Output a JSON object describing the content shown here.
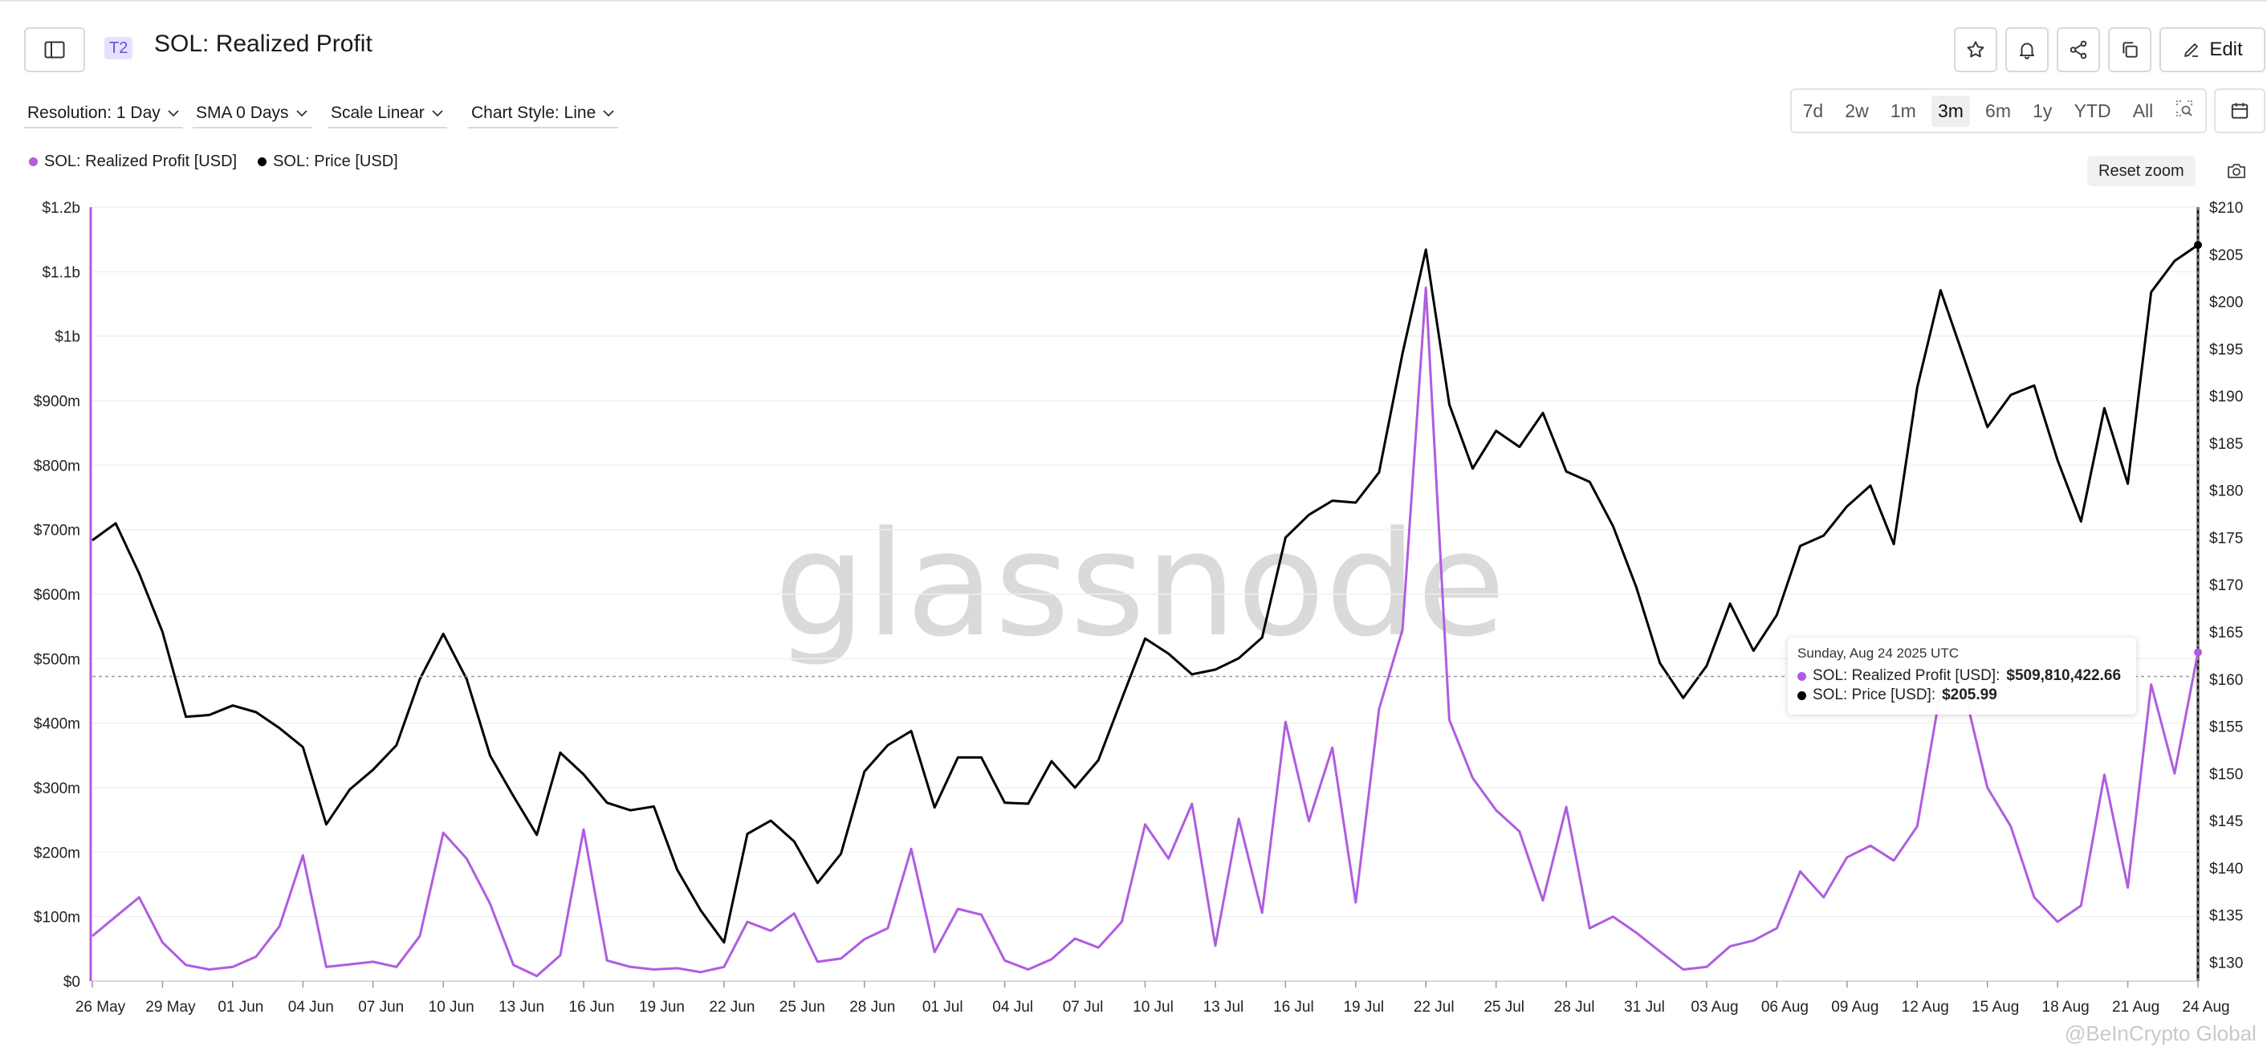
{
  "header": {
    "tier_badge": "T2",
    "title": "SOL: Realized Profit",
    "edit_label": "Edit"
  },
  "controls": {
    "resolution": "Resolution: 1 Day",
    "sma": "SMA 0 Days",
    "scale": "Scale Linear",
    "chart_style": "Chart Style: Line"
  },
  "ranges": [
    {
      "label": "7d",
      "active": false
    },
    {
      "label": "2w",
      "active": false
    },
    {
      "label": "1m",
      "active": false
    },
    {
      "label": "3m",
      "active": true
    },
    {
      "label": "6m",
      "active": false
    },
    {
      "label": "1y",
      "active": false
    },
    {
      "label": "YTD",
      "active": false
    },
    {
      "label": "All",
      "active": false
    }
  ],
  "reset_zoom_label": "Reset zoom",
  "watermark": "glassnode",
  "footer_credit": "@BeInCrypto Global",
  "tooltip": {
    "date": "Sunday, Aug 24 2025 UTC",
    "row1_label": "SOL: Realized Profit [USD]:",
    "row1_value": "$509,810,422.66",
    "row2_label": "SOL: Price [USD]:",
    "row2_value": "$205.99"
  },
  "colors": {
    "profit": "#b05ce0",
    "price": "#000000"
  },
  "chart_data": {
    "type": "line",
    "title": "SOL: Realized Profit",
    "x_ticks": [
      "26 May",
      "29 May",
      "01 Jun",
      "04 Jun",
      "07 Jun",
      "10 Jun",
      "13 Jun",
      "16 Jun",
      "19 Jun",
      "22 Jun",
      "25 Jun",
      "28 Jun",
      "01 Jul",
      "04 Jul",
      "07 Jul",
      "10 Jul",
      "13 Jul",
      "16 Jul",
      "19 Jul",
      "22 Jul",
      "25 Jul",
      "28 Jul",
      "31 Jul",
      "03 Aug",
      "06 Aug",
      "09 Aug",
      "12 Aug",
      "15 Aug",
      "18 Aug",
      "21 Aug",
      "24 Aug"
    ],
    "y_left_ticks": [
      "$0",
      "$100m",
      "$200m",
      "$300m",
      "$400m",
      "$500m",
      "$600m",
      "$700m",
      "$800m",
      "$900m",
      "$1b",
      "$1.1b",
      "$1.2b"
    ],
    "y_left_range": [
      0,
      1200
    ],
    "y_right_ticks": [
      "$130",
      "$135",
      "$140",
      "$145",
      "$150",
      "$155",
      "$160",
      "$165",
      "$170",
      "$175",
      "$180",
      "$185",
      "$190",
      "$195",
      "$200",
      "$205",
      "$210"
    ],
    "y_right_range": [
      128,
      210
    ],
    "grid": true,
    "legend_position": "top-left",
    "series": [
      {
        "name": "SOL: Realized Profit [USD]",
        "axis": "left",
        "unit": "millions USD",
        "values": [
          70,
          100,
          130,
          60,
          25,
          18,
          22,
          38,
          85,
          195,
          22,
          26,
          30,
          22,
          70,
          230,
          190,
          120,
          25,
          8,
          40,
          235,
          32,
          22,
          18,
          20,
          14,
          22,
          92,
          78,
          105,
          30,
          35,
          65,
          82,
          205,
          45,
          112,
          103,
          32,
          18,
          34,
          66,
          52,
          92,
          243,
          190,
          275,
          55,
          252,
          106,
          402,
          248,
          362,
          122,
          422,
          545,
          1075,
          405,
          315,
          265,
          232,
          125,
          270,
          82,
          100,
          75,
          46,
          18,
          22,
          54,
          63,
          82,
          170,
          130,
          192,
          210,
          187,
          240,
          450,
          452,
          300,
          240,
          130,
          92,
          117,
          320,
          145,
          460,
          322,
          509.8
        ]
      },
      {
        "name": "SOL: Price [USD]",
        "axis": "right",
        "unit": "USD",
        "values": [
          174.7,
          176.5,
          171.2,
          165.0,
          156.0,
          156.2,
          157.2,
          156.5,
          154.8,
          152.8,
          144.6,
          148.3,
          150.4,
          153.0,
          160.0,
          164.8,
          160.0,
          151.9,
          147.6,
          143.5,
          152.2,
          149.9,
          146.9,
          146.1,
          146.5,
          139.8,
          135.5,
          132.1,
          143.6,
          145.0,
          142.8,
          138.4,
          141.5,
          150.2,
          153.0,
          154.5,
          146.4,
          151.7,
          151.7,
          146.9,
          146.8,
          151.3,
          148.5,
          151.4,
          157.9,
          164.3,
          162.7,
          160.5,
          161.0,
          162.2,
          164.4,
          175.0,
          177.4,
          178.9,
          178.7,
          181.9,
          194.5,
          205.5,
          189.1,
          182.3,
          186.3,
          184.6,
          188.2,
          182.0,
          180.9,
          176.2,
          169.7,
          161.7,
          158.0,
          161.4,
          168.0,
          163.0,
          166.8,
          174.1,
          175.2,
          178.3,
          180.5,
          174.3,
          190.9,
          201.2,
          194.0,
          186.7,
          190.1,
          191.1,
          183.2,
          176.7,
          188.7,
          180.7,
          201.0,
          204.3,
          205.99
        ]
      }
    ]
  }
}
